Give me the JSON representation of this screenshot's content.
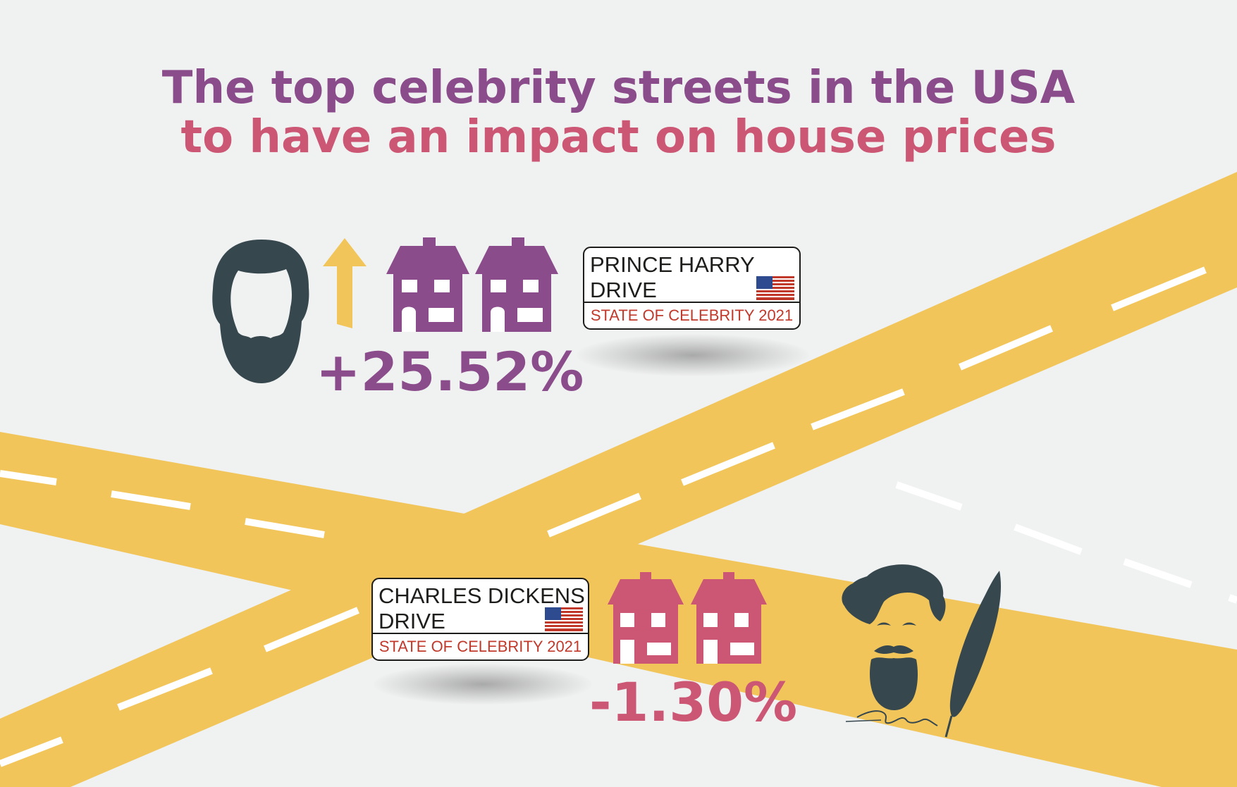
{
  "title": {
    "line1": "The top celebrity streets in the USA",
    "line2": "to have an impact on house prices"
  },
  "colors": {
    "background": "#f0f1f1",
    "road": "#f1c55a",
    "road_marking": "#ffffff",
    "purple": "#8a4c8a",
    "pink": "#cc5775",
    "silhouette": "#36474e",
    "sign_sub_text": "#c0392b"
  },
  "streets": [
    {
      "sign_name": "PRINCE HARRY\nDRIVE",
      "sign_subtitle": "STATE OF CELEBRITY 2021",
      "change_label": "+25.52%",
      "change_percent": 25.52,
      "direction": "up",
      "color": "#8a4c8a",
      "portrait_icon": "bearded-man-silhouette-icon",
      "arrow_icon": "arrow-up-icon",
      "house_icon": "house-icon"
    },
    {
      "sign_name": "CHARLES DICKENS\nDRIVE",
      "sign_subtitle": "STATE OF CELEBRITY 2021",
      "change_label": "-1.30%",
      "change_percent": -1.3,
      "direction": "down",
      "color": "#cc5775",
      "portrait_icon": "charles-dickens-portrait-icon",
      "arrow_icon": "arrow-down-icon",
      "house_icon": "house-icon",
      "extra_icon": "quill-pen-icon"
    }
  ],
  "flag_icon": "usa-flag-icon"
}
